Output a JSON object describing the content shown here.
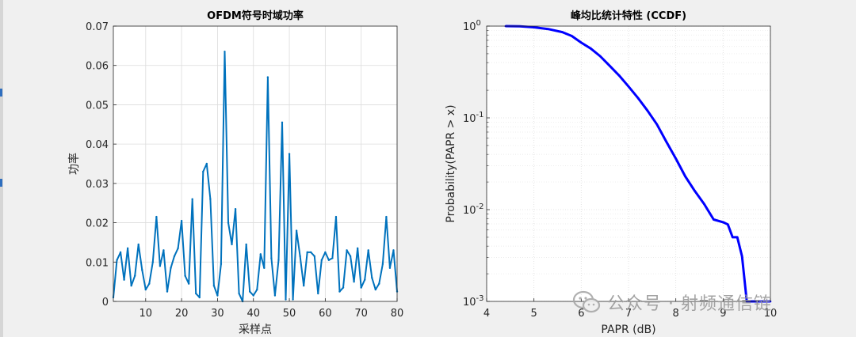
{
  "watermark": {
    "text": "公众号 · 射频通信链"
  },
  "colors": {
    "ofdm_line": "#0072bd",
    "ccdf_line": "#0000ff",
    "grid": "#dcdcdc",
    "axes_bg": "#ffffff"
  },
  "chart_data": [
    {
      "type": "line",
      "title": "OFDM符号时域功率",
      "xlabel": "采样点",
      "ylabel": "功率",
      "xlim": [
        1,
        80
      ],
      "ylim": [
        0,
        0.07
      ],
      "xticks": [
        10,
        20,
        30,
        40,
        50,
        60,
        70,
        80
      ],
      "yticks": [
        0,
        0.01,
        0.02,
        0.03,
        0.04,
        0.05,
        0.06,
        0.07
      ],
      "ytick_labels": [
        "0",
        "0.01",
        "0.02",
        "0.03",
        "0.04",
        "0.05",
        "0.06",
        "0.07"
      ],
      "grid": true,
      "series": [
        {
          "x": [
            1,
            2,
            3,
            4,
            5,
            6,
            7,
            8,
            9,
            10,
            11,
            12,
            13,
            14,
            15,
            16,
            17,
            18,
            19,
            20,
            21,
            22,
            23,
            24,
            25,
            26,
            27,
            28,
            29,
            30,
            31,
            32,
            33,
            34,
            35,
            36,
            37,
            38,
            39,
            40,
            41,
            42,
            43,
            44,
            45,
            46,
            47,
            48,
            49,
            50,
            51,
            52,
            53,
            54,
            55,
            56,
            57,
            58,
            59,
            60,
            61,
            62,
            63,
            64,
            65,
            66,
            67,
            68,
            69,
            70,
            71,
            72,
            73,
            74,
            75,
            76,
            77,
            78,
            79,
            80
          ],
          "y": [
            0.001,
            0.0105,
            0.0125,
            0.0055,
            0.0135,
            0.004,
            0.0065,
            0.0145,
            0.008,
            0.003,
            0.0045,
            0.01,
            0.0215,
            0.009,
            0.013,
            0.0025,
            0.0085,
            0.0115,
            0.0135,
            0.0205,
            0.0065,
            0.0045,
            0.026,
            0.002,
            0.001,
            0.033,
            0.035,
            0.026,
            0.004,
            0.0015,
            0.0095,
            0.0635,
            0.02,
            0.0145,
            0.0235,
            0.002,
            0.0,
            0.0145,
            0.0025,
            0.0015,
            0.003,
            0.012,
            0.0085,
            0.057,
            0.011,
            0.0015,
            0.0105,
            0.0455,
            0.0005,
            0.0375,
            0.0005,
            0.018,
            0.0115,
            0.004,
            0.0125,
            0.0125,
            0.0115,
            0.002,
            0.0105,
            0.0125,
            0.0105,
            0.011,
            0.0215,
            0.0025,
            0.0035,
            0.013,
            0.0115,
            0.005,
            0.0135,
            0.0035,
            0.0055,
            0.013,
            0.006,
            0.003,
            0.0045,
            0.0095,
            0.0215,
            0.0085,
            0.013,
            0.0025
          ]
        }
      ]
    },
    {
      "type": "line",
      "title": "峰均比统计特性 (CCDF)",
      "xlabel": "PAPR (dB)",
      "ylabel": "Probability(PAPR > x)",
      "xlim": [
        4,
        10
      ],
      "ylim": [
        0.001,
        1
      ],
      "yscale": "log",
      "xticks": [
        4,
        5,
        6,
        7,
        8,
        9,
        10
      ],
      "yticks": [
        0.001,
        0.01,
        0.1,
        1
      ],
      "ytick_exponents": [
        "-3",
        "-2",
        "-1",
        "0"
      ],
      "grid": true,
      "series": [
        {
          "x": [
            4.4,
            4.7,
            5.0,
            5.3,
            5.6,
            5.8,
            6.0,
            6.2,
            6.4,
            6.6,
            6.8,
            7.0,
            7.2,
            7.4,
            7.6,
            7.8,
            8.0,
            8.2,
            8.4,
            8.6,
            8.8,
            9.0,
            9.1,
            9.2,
            9.3,
            9.4,
            9.5,
            9.6,
            9.7,
            9.8,
            9.9,
            10.0
          ],
          "y": [
            1.0,
            0.995,
            0.97,
            0.93,
            0.86,
            0.78,
            0.66,
            0.57,
            0.47,
            0.37,
            0.29,
            0.22,
            0.165,
            0.12,
            0.085,
            0.055,
            0.036,
            0.023,
            0.016,
            0.0115,
            0.0078,
            0.0073,
            0.0069,
            0.005,
            0.005,
            0.0031,
            0.001,
            0.001,
            0.001,
            0.001,
            0.001,
            0.001
          ]
        }
      ]
    }
  ]
}
